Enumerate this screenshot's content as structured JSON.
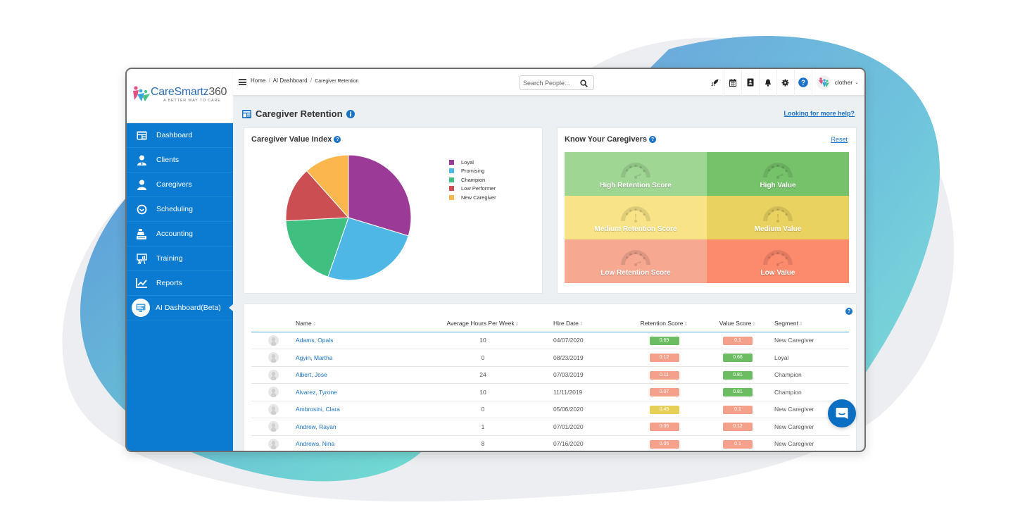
{
  "brand": {
    "name": "CareSmartz",
    "name_num": "360",
    "tagline": "A BETTER WAY TO CARE",
    "colors": {
      "primary": "#0a7bd0",
      "link": "#1a73c7"
    }
  },
  "sidebar": {
    "items": [
      {
        "label": "Dashboard",
        "icon": "dashboard-icon"
      },
      {
        "label": "Clients",
        "icon": "client-icon"
      },
      {
        "label": "Caregivers",
        "icon": "caregiver-icon"
      },
      {
        "label": "Scheduling",
        "icon": "clock-icon"
      },
      {
        "label": "Accounting",
        "icon": "cash-register-icon"
      },
      {
        "label": "Training",
        "icon": "presentation-icon"
      },
      {
        "label": "Reports",
        "icon": "line-chart-icon"
      },
      {
        "label": "AI Dashboard(Beta)",
        "icon": "monitor-icon",
        "active": true
      }
    ]
  },
  "topbar": {
    "breadcrumb": [
      "Home",
      "AI Dashboard",
      "Caregiver Retention"
    ],
    "breadcrumb_sep": "/",
    "search_placeholder": "Search People...",
    "icons": [
      "rocket-icon",
      "calendar-icon",
      "contacts-book-icon",
      "bell-icon",
      "gear-icon",
      "help-icon"
    ],
    "user_name": "clother",
    "caret": "⌄"
  },
  "page": {
    "title": "Caregiver Retention",
    "help_link": "Looking for more help?"
  },
  "cvi": {
    "title": "Caregiver Value Index",
    "chart_data": {
      "type": "pie",
      "title": "Caregiver Value Index",
      "legend_position": "right",
      "categories": [
        "Loyal",
        "Promising",
        "Champion",
        "Low Performer",
        "New Caregiver"
      ],
      "values": [
        29.7,
        25.6,
        18.9,
        14.2,
        11.6
      ],
      "colors": [
        "#9c3a98",
        "#4fb7e6",
        "#3fbf80",
        "#cb4f52",
        "#fbb64e"
      ]
    }
  },
  "kyc": {
    "title": "Know Your Caregivers",
    "reset": "Reset",
    "cells": [
      {
        "label": "High Retention Score",
        "color": "#a0d694",
        "needle": "right"
      },
      {
        "label": "High Value",
        "color": "#76c26a",
        "needle": "right"
      },
      {
        "label": "Medium Retention Score",
        "color": "#f8e487",
        "needle": "up"
      },
      {
        "label": "Medium Value",
        "color": "#e9d25f",
        "needle": "up"
      },
      {
        "label": "Low Retention Score",
        "color": "#f7a891",
        "needle": "right"
      },
      {
        "label": "Low Value",
        "color": "#fc8a6c",
        "needle": "right"
      }
    ]
  },
  "table": {
    "columns": [
      "Name",
      "Average Hours Per Week",
      "Hire Date",
      "Retention Score",
      "Value Score",
      "Segment"
    ],
    "sort_glyph": "⇕",
    "badge_colors": {
      "high": "#6cbd62",
      "medium": "#e6cf55",
      "low": "#f5a08b"
    },
    "rows": [
      {
        "name": "Adams, Opals",
        "hours": "10",
        "hire": "04/07/2020",
        "retention": "0.69",
        "retention_level": "high",
        "value": "0.1",
        "value_level": "low",
        "segment": "New Caregiver"
      },
      {
        "name": "Agyin, Martha",
        "hours": "0",
        "hire": "08/23/2019",
        "retention": "0.12",
        "retention_level": "low",
        "value": "0.66",
        "value_level": "high",
        "segment": "Loyal"
      },
      {
        "name": "Albert, Jose",
        "hours": "24",
        "hire": "07/03/2019",
        "retention": "0.11",
        "retention_level": "low",
        "value": "0.81",
        "value_level": "high",
        "segment": "Champion"
      },
      {
        "name": "Alvarez, Tyrone",
        "hours": "10",
        "hire": "11/11/2019",
        "retention": "0.07",
        "retention_level": "low",
        "value": "0.81",
        "value_level": "high",
        "segment": "Champion"
      },
      {
        "name": "Ambrosini, Clara",
        "hours": "0",
        "hire": "05/06/2020",
        "retention": "0.45",
        "retention_level": "medium",
        "value": "0.1",
        "value_level": "low",
        "segment": "New Caregiver"
      },
      {
        "name": "Andrew, Rayan",
        "hours": "1",
        "hire": "07/01/2020",
        "retention": "0.06",
        "retention_level": "low",
        "value": "0.12",
        "value_level": "low",
        "segment": "New Caregiver"
      },
      {
        "name": "Andrews, Nina",
        "hours": "8",
        "hire": "07/16/2020",
        "retention": "0.05",
        "retention_level": "low",
        "value": "0.1",
        "value_level": "low",
        "segment": "New Caregiver"
      }
    ]
  }
}
